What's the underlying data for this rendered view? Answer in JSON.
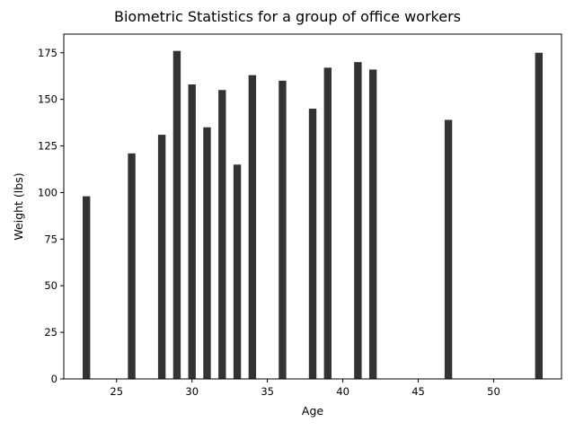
{
  "chart_data": {
    "type": "bar",
    "title": "Biometric Statistics for a group of office workers",
    "xlabel": "Age",
    "ylabel": "Weight (lbs)",
    "x": [
      23,
      26,
      28,
      29,
      30,
      31,
      32,
      33,
      34,
      36,
      38,
      39,
      41,
      42,
      47,
      53
    ],
    "values": [
      98,
      121,
      131,
      176,
      158,
      135,
      155,
      115,
      163,
      160,
      145,
      167,
      170,
      166,
      139,
      175
    ],
    "xlim": [
      21.5,
      54.5
    ],
    "ylim": [
      0,
      185
    ],
    "xticks": [
      25,
      30,
      35,
      40,
      45,
      50
    ],
    "yticks": [
      0,
      25,
      50,
      75,
      100,
      125,
      150,
      175
    ],
    "bar_width": 0.5,
    "bar_color": "#333333",
    "grid": false,
    "legend": "none"
  }
}
